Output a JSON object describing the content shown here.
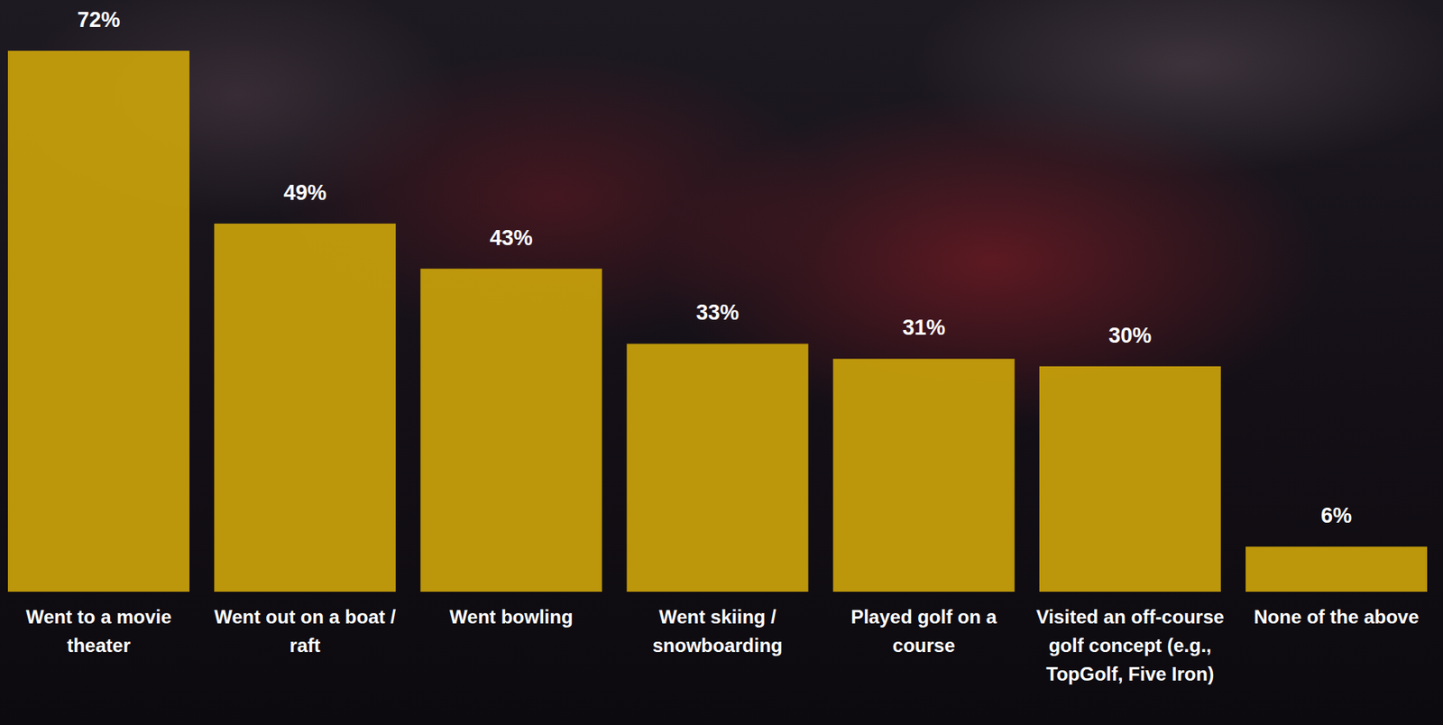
{
  "chart_data": {
    "type": "bar",
    "categories": [
      "Went to a movie theater",
      "Went out on a boat / raft",
      "Went bowling",
      "Went skiing / snowboarding",
      "Played golf on a course",
      "Visited an off-course golf concept (e.g., TopGolf, Five Iron)",
      "None of the above"
    ],
    "values": [
      72,
      49,
      43,
      33,
      31,
      30,
      6
    ],
    "value_labels": [
      "72%",
      "49%",
      "43%",
      "33%",
      "31%",
      "30%",
      "6%"
    ],
    "color": "#c9a10b",
    "ylim": [
      0,
      72
    ],
    "data_labels": true,
    "tick_labels": "x"
  }
}
